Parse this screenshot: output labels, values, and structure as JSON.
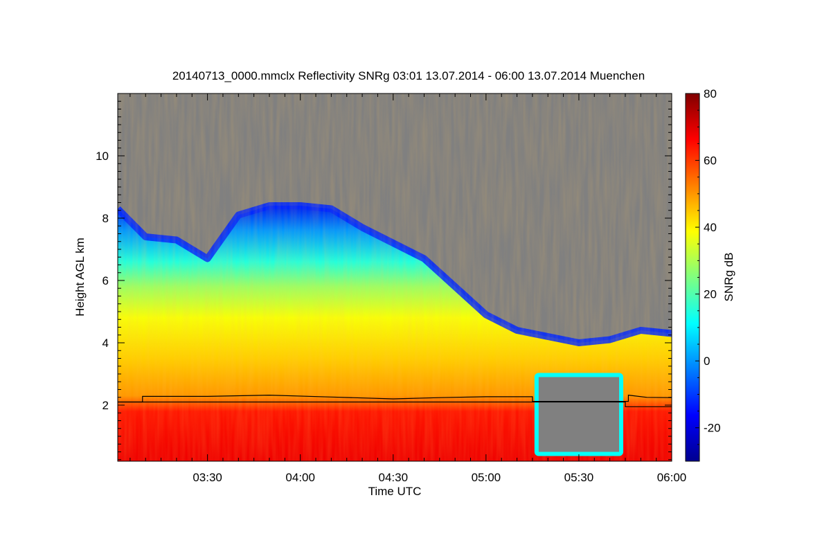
{
  "chart_data": {
    "type": "heatmap",
    "title": "20140713_0000.mmclx Reflectivity SNRg   03:01 13.07.2014 - 06:00 13.07.2014 Muenchen",
    "xlabel": "Time UTC",
    "ylabel": "Height AGL km",
    "colorbar_label": "SNRg dB",
    "x_range": [
      "03:01",
      "06:00"
    ],
    "x_ticks": [
      "03:30",
      "04:00",
      "04:30",
      "05:00",
      "05:30",
      "06:00"
    ],
    "y_range": [
      0.2,
      12.0
    ],
    "y_ticks": [
      2,
      4,
      6,
      8,
      10
    ],
    "color_range": [
      -30,
      80
    ],
    "colorbar_ticks": [
      -20,
      0,
      20,
      40,
      60,
      80
    ],
    "colormap": "jet",
    "background_color": "#808080",
    "cloud_top_km": [
      {
        "time": "03:01",
        "top": 8.3
      },
      {
        "time": "03:10",
        "top": 7.4
      },
      {
        "time": "03:20",
        "top": 7.3
      },
      {
        "time": "03:30",
        "top": 6.7
      },
      {
        "time": "03:40",
        "top": 8.1
      },
      {
        "time": "03:50",
        "top": 8.4
      },
      {
        "time": "04:00",
        "top": 8.4
      },
      {
        "time": "04:10",
        "top": 8.3
      },
      {
        "time": "04:20",
        "top": 7.7
      },
      {
        "time": "04:30",
        "top": 7.2
      },
      {
        "time": "04:40",
        "top": 6.7
      },
      {
        "time": "04:50",
        "top": 5.8
      },
      {
        "time": "05:00",
        "top": 4.9
      },
      {
        "time": "05:10",
        "top": 4.4
      },
      {
        "time": "05:20",
        "top": 4.2
      },
      {
        "time": "05:30",
        "top": 4.0
      },
      {
        "time": "05:40",
        "top": 4.1
      },
      {
        "time": "05:50",
        "top": 4.4
      },
      {
        "time": "06:00",
        "top": 4.3
      }
    ],
    "gaps": [
      {
        "from": "05:17",
        "to": "05:43",
        "bottom_km": 0.5,
        "top_km": 2.9
      }
    ],
    "line_series": [
      {
        "points": [
          {
            "time": "03:01",
            "height": 2.1
          },
          {
            "time": "03:09",
            "height": 2.1
          },
          {
            "time": "03:09",
            "height": 2.28
          },
          {
            "time": "03:30",
            "height": 2.28
          },
          {
            "time": "03:50",
            "height": 2.32
          },
          {
            "time": "04:10",
            "height": 2.26
          },
          {
            "time": "04:30",
            "height": 2.2
          },
          {
            "time": "04:45",
            "height": 2.24
          },
          {
            "time": "05:00",
            "height": 2.27
          },
          {
            "time": "05:15",
            "height": 2.27
          },
          {
            "time": "05:15",
            "height": 2.12
          },
          {
            "time": "05:46",
            "height": 2.12
          },
          {
            "time": "05:46",
            "height": 2.32
          },
          {
            "time": "05:52",
            "height": 2.25
          },
          {
            "time": "06:00",
            "height": 2.24
          }
        ]
      },
      {
        "points": [
          {
            "time": "03:01",
            "height": 2.1
          },
          {
            "time": "05:45",
            "height": 2.1
          },
          {
            "time": "05:45",
            "height": 1.95
          },
          {
            "time": "06:00",
            "height": 1.95
          }
        ]
      }
    ]
  }
}
